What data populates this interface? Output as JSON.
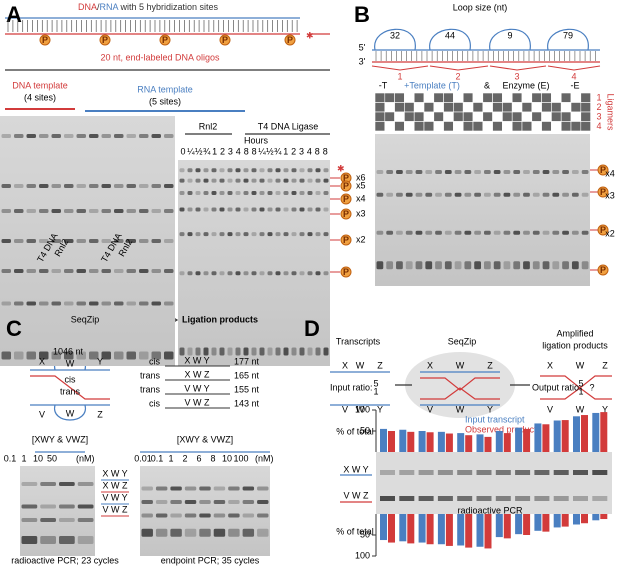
{
  "phosphate": "P",
  "letters": {
    "x": "X",
    "w": "W",
    "y": "Y",
    "v": "V",
    "z": "Z"
  },
  "panel_a": {
    "label": "A",
    "title_dna": "DNA",
    "title_slash": "/",
    "title_rna": "RNA",
    "title_rest": " with 5 hybridization sites",
    "oligos": "20 nt, end-labeled DNA oligos",
    "dna_template": "DNA template",
    "dna_sites": "(4 sites)",
    "rna_template": "RNA template",
    "rna_sites": "(5 sites)",
    "lane_labels": [
      "T4 DNA",
      "Rnl2",
      "T4 DNA",
      "Rnl2"
    ],
    "rnl2": "Rnl2",
    "t4_ligase": "T4 DNA Ligase",
    "hours_label": "Hours",
    "hours": [
      "0",
      "¼",
      "½",
      "¾",
      "1",
      "2",
      "3",
      "4",
      "8",
      "8",
      "¼",
      "½",
      "¾",
      "1",
      "2",
      "3",
      "4",
      "8",
      "8"
    ],
    "markers": [
      "x6",
      "x5",
      "x4",
      "x3",
      "x2"
    ]
  },
  "panel_b": {
    "label": "B",
    "loop_title": "Loop size (nt)",
    "loops": [
      32,
      44,
      9,
      79
    ],
    "five_prime": "5'",
    "three_prime": "3'",
    "sites": [
      1,
      2,
      3,
      4
    ],
    "minus_t": "-T",
    "plus_t": "+Template (T)",
    "amp": "&",
    "enzyme": "Enzyme (E)",
    "minus_e": "-E",
    "ligamers": "Ligamers",
    "ligamer_rows": [
      1,
      2,
      3,
      4
    ],
    "markers": [
      "x4",
      "x3",
      "x2"
    ]
  },
  "panel_c": {
    "label": "C",
    "seqzip": "SeqZip",
    "ligation_products": "Ligation products",
    "length": "1046 nt",
    "cis": "cis",
    "trans": "trans",
    "products": [
      {
        "type": "cis",
        "name": "X W Y",
        "length": "177 nt"
      },
      {
        "type": "trans",
        "name": "X W Z",
        "length": "165 nt"
      },
      {
        "type": "trans",
        "name": "V W Y",
        "length": "155 nt"
      },
      {
        "type": "cis",
        "name": "V W Z",
        "length": "143 nt"
      }
    ],
    "conc_label": "[XWY & VWZ]",
    "conc_left": [
      "0.1",
      "1",
      "10",
      "50"
    ],
    "conc_right": [
      "0.01",
      "0.1",
      "1",
      "2",
      "6",
      "8",
      "10",
      "100"
    ],
    "unit": "(nM)",
    "gel_labels": [
      "X W Y",
      "X W Z",
      "V W Y",
      "V W Z"
    ],
    "caption_left": "radioactive PCR; 23 cycles",
    "caption_right": "endpoint PCR; 35 cycles"
  },
  "panel_d": {
    "label": "D",
    "transcripts": "Transcripts",
    "seqzip": "SeqZip",
    "amplified": "Amplified",
    "ligation_products": "ligation products",
    "input_ratio": "Input ratio:",
    "output_ratio": "Output ratio:",
    "ratio_num": 5,
    "ratio_den": 1,
    "unknown": "?",
    "gel_labels": [
      "X W Y",
      "V W Z"
    ],
    "gel_caption": "radioactive PCR",
    "axis_label": "% of total",
    "ylim": [
      0,
      100
    ],
    "top_ticks": [
      50,
      100
    ],
    "bottom_ticks": [
      50,
      100
    ],
    "series": [
      {
        "name": "Input transcript",
        "color": "#4a7fc1",
        "top": [
          55,
          53,
          50,
          48,
          45,
          42,
          50,
          58,
          68,
          75,
          85,
          93
        ],
        "bottom": [
          62,
          65,
          68,
          72,
          75,
          78,
          55,
          48,
          40,
          32,
          25,
          15
        ]
      },
      {
        "name": "Observed product",
        "color": "#d23b3b",
        "top": [
          50,
          48,
          47,
          44,
          40,
          36,
          45,
          55,
          66,
          76,
          88,
          95
        ],
        "bottom": [
          68,
          70,
          72,
          76,
          80,
          82,
          58,
          50,
          42,
          30,
          22,
          12
        ]
      }
    ]
  }
}
